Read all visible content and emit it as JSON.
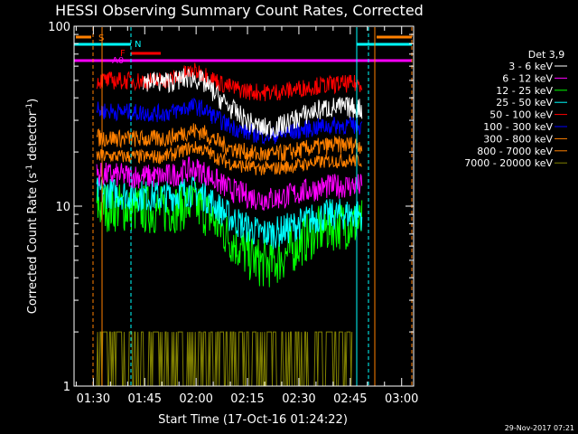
{
  "chart_data": {
    "type": "line",
    "title": "HESSI Observing Summary Count Rates, Corrected",
    "xlabel": "Start Time (17-Oct-16 01:24:22)",
    "ylabel_main": "Corrected Count Rate (s",
    "ylabel_sup1": "-1",
    "ylabel_mid": " detector",
    "ylabel_sup2": "-1",
    "ylabel_end": ")",
    "ylim": [
      1,
      100
    ],
    "yscale": "log",
    "y_ticks": [
      {
        "v": 1,
        "label": "1"
      },
      {
        "v": 10,
        "label": "10"
      },
      {
        "v": 100,
        "label": "100"
      }
    ],
    "xlim_minutes": [
      84.37,
      183.5
    ],
    "x_ticks": [
      {
        "t": 90,
        "label": "01:30"
      },
      {
        "t": 105,
        "label": "01:45"
      },
      {
        "t": 120,
        "label": "02:00"
      },
      {
        "t": 135,
        "label": "02:15"
      },
      {
        "t": 150,
        "label": "02:30"
      },
      {
        "t": 165,
        "label": "02:45"
      },
      {
        "t": 180,
        "label": "03:00"
      }
    ],
    "legend_title": "Det 3,9",
    "series": [
      {
        "name": "3 - 6 keV",
        "color": "#ffffff",
        "base": 50,
        "end": 35,
        "dip": 0.65,
        "noise": 0.06,
        "x0": 104.5
      },
      {
        "name": "6 - 12 keV",
        "color": "#ff00ff",
        "base": 15,
        "end": 13,
        "dip": 0.8,
        "noise": 0.07,
        "x0": 91
      },
      {
        "name": "12 - 25 keV",
        "color": "#00ff00",
        "base": 10,
        "end": 8,
        "dip": 0.55,
        "noise": 0.14,
        "x0": 91
      },
      {
        "name": "25 - 50 keV",
        "color": "#00ffff",
        "base": 12,
        "end": 9,
        "dip": 0.7,
        "noise": 0.09,
        "x0": 91
      },
      {
        "name": "50 - 100 keV",
        "color": "#ff0000",
        "base": 50,
        "end": 48,
        "dip": 0.88,
        "noise": 0.05,
        "x0": 91
      },
      {
        "name": "100 - 300 keV",
        "color": "#0000ff",
        "base": 34,
        "end": 28,
        "dip": 0.82,
        "noise": 0.05,
        "x0": 91
      },
      {
        "name": "300 - 800 keV",
        "color": "#ff8000",
        "base": 24,
        "end": 22,
        "dip": 0.85,
        "noise": 0.05,
        "x0": 91
      },
      {
        "name": "800 - 7000 keV",
        "color": "#ff8000",
        "base": 19,
        "end": 18,
        "dip": 0.88,
        "noise": 0.04,
        "x0": 91
      },
      {
        "name": "7000 - 20000 keV",
        "color": "#808000",
        "base": 2,
        "end": 2,
        "dip": 1,
        "noise": 0,
        "x0": 91
      }
    ],
    "series_colors_fix": [
      "#ffffff",
      "#ff00ff",
      "#00ff00",
      "#00ffff",
      "#ff0000",
      "#0000ff",
      "#ff8000",
      "#ff8000",
      "#808000"
    ],
    "flag_labels": {
      "s": "S",
      "n": "N",
      "f": "F",
      "a0": "A0"
    },
    "flag_colors": {
      "s": "#ff8000",
      "n": "#00ffff",
      "f": "#ff0000",
      "a0": "#ff00ff"
    },
    "grid": false,
    "legend_position": "right"
  },
  "footer_date": "29-Nov-2017 07:21"
}
